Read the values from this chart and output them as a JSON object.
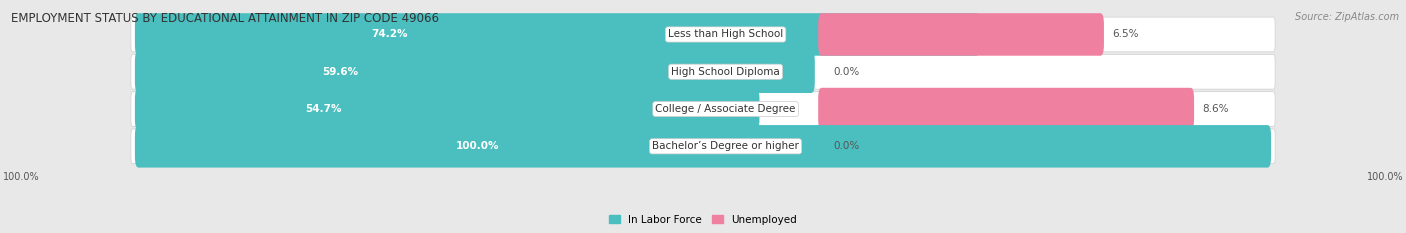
{
  "title": "EMPLOYMENT STATUS BY EDUCATIONAL ATTAINMENT IN ZIP CODE 49066",
  "source": "Source: ZipAtlas.com",
  "categories": [
    "Less than High School",
    "High School Diploma",
    "College / Associate Degree",
    "Bachelor’s Degree or higher"
  ],
  "in_labor_force": [
    74.2,
    59.6,
    54.7,
    100.0
  ],
  "unemployed": [
    6.5,
    0.0,
    8.6,
    0.0
  ],
  "bar_color_labor": "#4BBFBF",
  "bar_color_unemployed": "#F080A0",
  "background_color": "#e8e8e8",
  "bar_bg_color": "#ffffff",
  "figsize": [
    14.06,
    2.33
  ],
  "dpi": 100,
  "bar_height": 0.62,
  "total_bar_width": 100.0,
  "label_junction": 52.0,
  "unemp_bar_scale": 3.8,
  "labor_label_color_inside": "#ffffff",
  "labor_label_color_outside": "#555555",
  "value_label_color": "#555555",
  "cat_label_fontsize": 7.5,
  "pct_label_fontsize": 7.5,
  "title_fontsize": 8.5,
  "source_fontsize": 7.0
}
